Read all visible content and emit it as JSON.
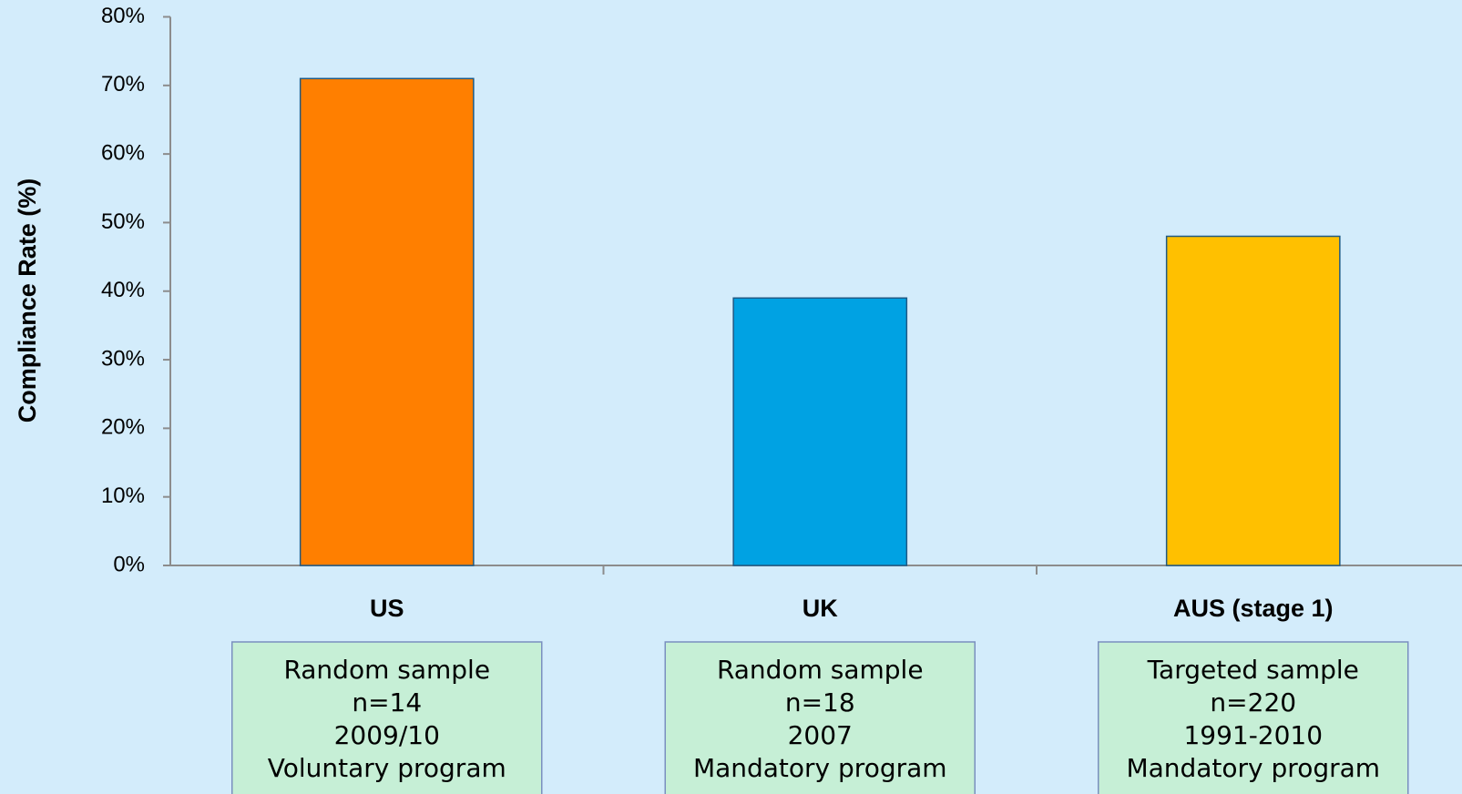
{
  "chart_data": {
    "type": "bar",
    "y_axis_label": "Compliance Rate (%)",
    "categories": [
      "US",
      "UK",
      "AUS (stage 1)"
    ],
    "values": [
      71,
      39,
      48
    ],
    "colors": [
      "#ff7f00",
      "#00a2e3",
      "#ffc000"
    ],
    "ylim": [
      0,
      80
    ],
    "yticks": [
      {
        "value": 0,
        "label": "0%"
      },
      {
        "value": 10,
        "label": "10%"
      },
      {
        "value": 20,
        "label": "20%"
      },
      {
        "value": 30,
        "label": "30%"
      },
      {
        "value": 40,
        "label": "40%"
      },
      {
        "value": 50,
        "label": "50%"
      },
      {
        "value": 60,
        "label": "60%"
      },
      {
        "value": 70,
        "label": "70%"
      },
      {
        "value": 80,
        "label": "80%"
      }
    ],
    "grid": false,
    "notes": [
      [
        "Random sample",
        "n=14",
        "2009/10",
        "Voluntary program"
      ],
      [
        "Random sample",
        "n=18",
        "2007",
        "Mandatory program"
      ],
      [
        "Targeted sample",
        "n=220",
        "1991-2010",
        "Mandatory program"
      ]
    ]
  }
}
